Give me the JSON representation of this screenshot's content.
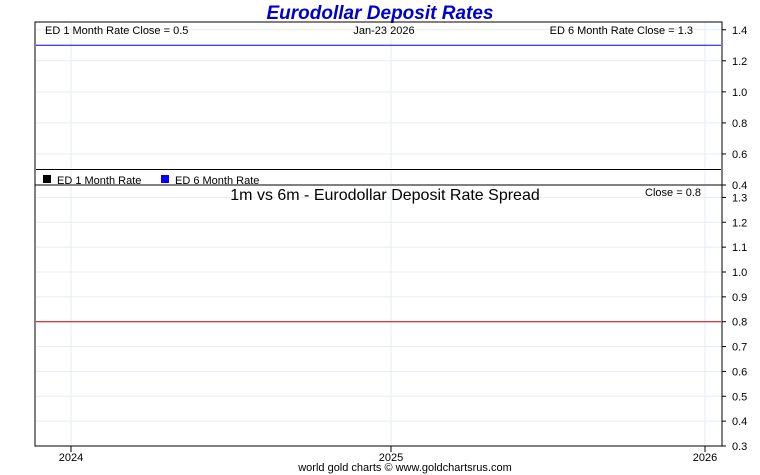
{
  "title": "Eurodollar Deposit Rates",
  "footer": "world gold charts © www.goldchartsrus.com",
  "colors": {
    "title": "#0000cc",
    "series_1m": "#000000",
    "series_6m": "#0000ff",
    "spread": "#cc0000",
    "grid": "#e4edf4"
  },
  "chart_data": [
    {
      "type": "line",
      "header_left": "ED 1 Month Rate Close = 0.5",
      "header_center": "Jan-23  2026",
      "header_right": "ED 6 Month Rate Close = 1.3",
      "x_ticks": [
        "2024",
        "2025",
        "2026"
      ],
      "ylim": [
        0.4,
        1.45
      ],
      "y_ticks": [
        "1.4",
        "1.2",
        "1.0",
        "0.8",
        "0.6",
        "0.4"
      ],
      "grid": true,
      "legend_position": "bottom-left",
      "series": [
        {
          "name": "ED 1 Month Rate",
          "color": "#000000",
          "values": [
            0.5,
            0.5
          ]
        },
        {
          "name": "ED 6 Month Rate",
          "color": "#0000ff",
          "values": [
            1.3,
            1.3
          ]
        }
      ]
    },
    {
      "type": "line",
      "title": "1m vs 6m - Eurodollar Deposit Rate Spread",
      "header_right": "Close = 0.8",
      "x_ticks": [
        "2024",
        "2025",
        "2026"
      ],
      "ylim": [
        0.3,
        1.35
      ],
      "y_ticks": [
        "1.3",
        "1.2",
        "1.1",
        "1.0",
        "0.9",
        "0.8",
        "0.7",
        "0.6",
        "0.5",
        "0.4",
        "0.3"
      ],
      "grid": true,
      "series": [
        {
          "color": "#cc0000",
          "values": [
            0.8,
            0.8
          ]
        }
      ]
    }
  ]
}
